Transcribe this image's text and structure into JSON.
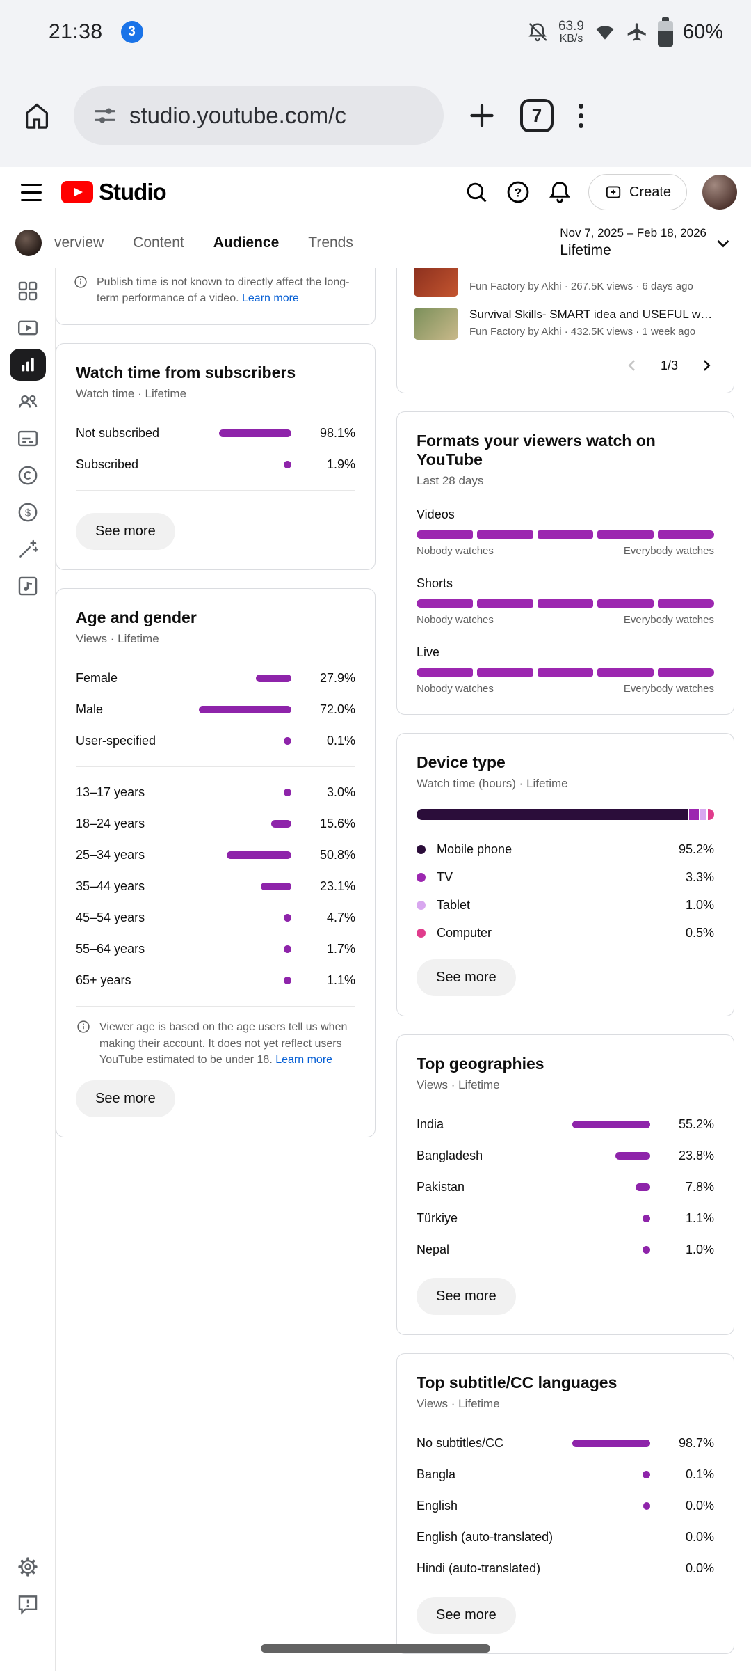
{
  "status_bar": {
    "time": "21:38",
    "badge": "3",
    "net_speed": "63.9",
    "net_unit": "KB/s",
    "battery_pct": "60%"
  },
  "browser": {
    "url": "studio.youtube.com/c",
    "tab_count": "7"
  },
  "studio_header": {
    "brand": "Studio",
    "create": "Create"
  },
  "subheader": {
    "tabs": [
      {
        "label": "verview"
      },
      {
        "label": "Content"
      },
      {
        "label": "Audience"
      },
      {
        "label": "Trends"
      }
    ],
    "active_tab": "Audience",
    "date_range": "Nov 7, 2025 – Feb 18, 2026",
    "period": "Lifetime"
  },
  "colors": {
    "bar_purple": "#8e24aa",
    "format_purple": "#9c27b0",
    "accent_blue": "#065fd4",
    "brand_red": "#ff0000"
  },
  "left_column": {
    "publish_note": {
      "text": "Publish time is not known to directly affect the long-term performance of a video.",
      "link": "Learn more"
    },
    "watch_time_card": {
      "title": "Watch time from subscribers",
      "subtitle": "Watch time · Lifetime",
      "rows": [
        {
          "label": "Not subscribed",
          "pct": "98.1%",
          "value": 98.1,
          "bar": 104
        },
        {
          "label": "Subscribed",
          "pct": "1.9%",
          "value": 1.9,
          "bar": 11
        }
      ],
      "see_more": "See more"
    },
    "age_gender_card": {
      "title": "Age and gender",
      "subtitle": "Views · Lifetime",
      "gender_rows": [
        {
          "label": "Female",
          "pct": "27.9%",
          "value": 27.9,
          "bar": 51
        },
        {
          "label": "Male",
          "pct": "72.0%",
          "value": 72.0,
          "bar": 133
        },
        {
          "label": "User-specified",
          "pct": "0.1%",
          "value": 0.1,
          "bar": 11
        }
      ],
      "age_rows": [
        {
          "label": "13–17 years",
          "pct": "3.0%",
          "value": 3.0,
          "bar": 11
        },
        {
          "label": "18–24 years",
          "pct": "15.6%",
          "value": 15.6,
          "bar": 29
        },
        {
          "label": "25–34 years",
          "pct": "50.8%",
          "value": 50.8,
          "bar": 93
        },
        {
          "label": "35–44 years",
          "pct": "23.1%",
          "value": 23.1,
          "bar": 44
        },
        {
          "label": "45–54 years",
          "pct": "4.7%",
          "value": 4.7,
          "bar": 11
        },
        {
          "label": "55–64 years",
          "pct": "1.7%",
          "value": 1.7,
          "bar": 11
        },
        {
          "label": "65+ years",
          "pct": "1.1%",
          "value": 1.1,
          "bar": 11
        }
      ],
      "note": "Viewer age is based on the age users tell us when making their account. It does not yet reflect users YouTube estimated to be under 18.",
      "note_link": "Learn more",
      "see_more": "See more"
    }
  },
  "right_column": {
    "top_videos_card": {
      "videos": [
        {
          "title": "",
          "meta": "Fun Factory by Akhi · 267.5K views · 6 days ago"
        },
        {
          "title": "Survival Skills- SMART idea and USEFUL withsi...",
          "meta": "Fun Factory by Akhi · 432.5K views · 1 week ago"
        }
      ],
      "page": "1/3"
    },
    "formats_card": {
      "title": "Formats your viewers watch on YouTube",
      "subtitle": "Last 28 days",
      "rows": [
        {
          "label": "Videos"
        },
        {
          "label": "Shorts"
        },
        {
          "label": "Live"
        }
      ],
      "left_label": "Nobody watches",
      "right_label": "Everybody watches",
      "segments": 5
    },
    "device_card": {
      "title": "Device type",
      "subtitle": "Watch time (hours) · Lifetime",
      "rows": [
        {
          "label": "Mobile phone",
          "pct": "95.2%",
          "value": 95.2,
          "color": "#2b0d3a"
        },
        {
          "label": "TV",
          "pct": "3.3%",
          "value": 3.3,
          "color": "#9c27b0"
        },
        {
          "label": "Tablet",
          "pct": "1.0%",
          "value": 1.0,
          "color": "#d8a7ef"
        },
        {
          "label": "Computer",
          "pct": "0.5%",
          "value": 0.5,
          "color": "#e03c8c"
        }
      ],
      "see_more": "See more"
    },
    "geo_card": {
      "title": "Top geographies",
      "subtitle": "Views · Lifetime",
      "rows": [
        {
          "label": "India",
          "pct": "55.2%",
          "value": 55.2,
          "bar": 112
        },
        {
          "label": "Bangladesh",
          "pct": "23.8%",
          "value": 23.8,
          "bar": 50
        },
        {
          "label": "Pakistan",
          "pct": "7.8%",
          "value": 7.8,
          "bar": 21
        },
        {
          "label": "Türkiye",
          "pct": "1.1%",
          "value": 1.1,
          "bar": 11
        },
        {
          "label": "Nepal",
          "pct": "1.0%",
          "value": 1.0,
          "bar": 11
        }
      ],
      "see_more": "See more"
    },
    "subtitles_card": {
      "title": "Top subtitle/CC languages",
      "subtitle": "Views · Lifetime",
      "rows": [
        {
          "label": "No subtitles/CC",
          "pct": "98.7%",
          "value": 98.7,
          "bar": 112
        },
        {
          "label": "Bangla",
          "pct": "0.1%",
          "value": 0.1,
          "bar": 11
        },
        {
          "label": "English",
          "pct": "0.0%",
          "value": 0.0,
          "bar": 10
        },
        {
          "label": "English (auto-translated)",
          "pct": "0.0%",
          "value": 0.0,
          "bar": 0
        },
        {
          "label": "Hindi (auto-translated)",
          "pct": "0.0%",
          "value": 0.0,
          "bar": 0
        }
      ],
      "see_more": "See more"
    }
  }
}
